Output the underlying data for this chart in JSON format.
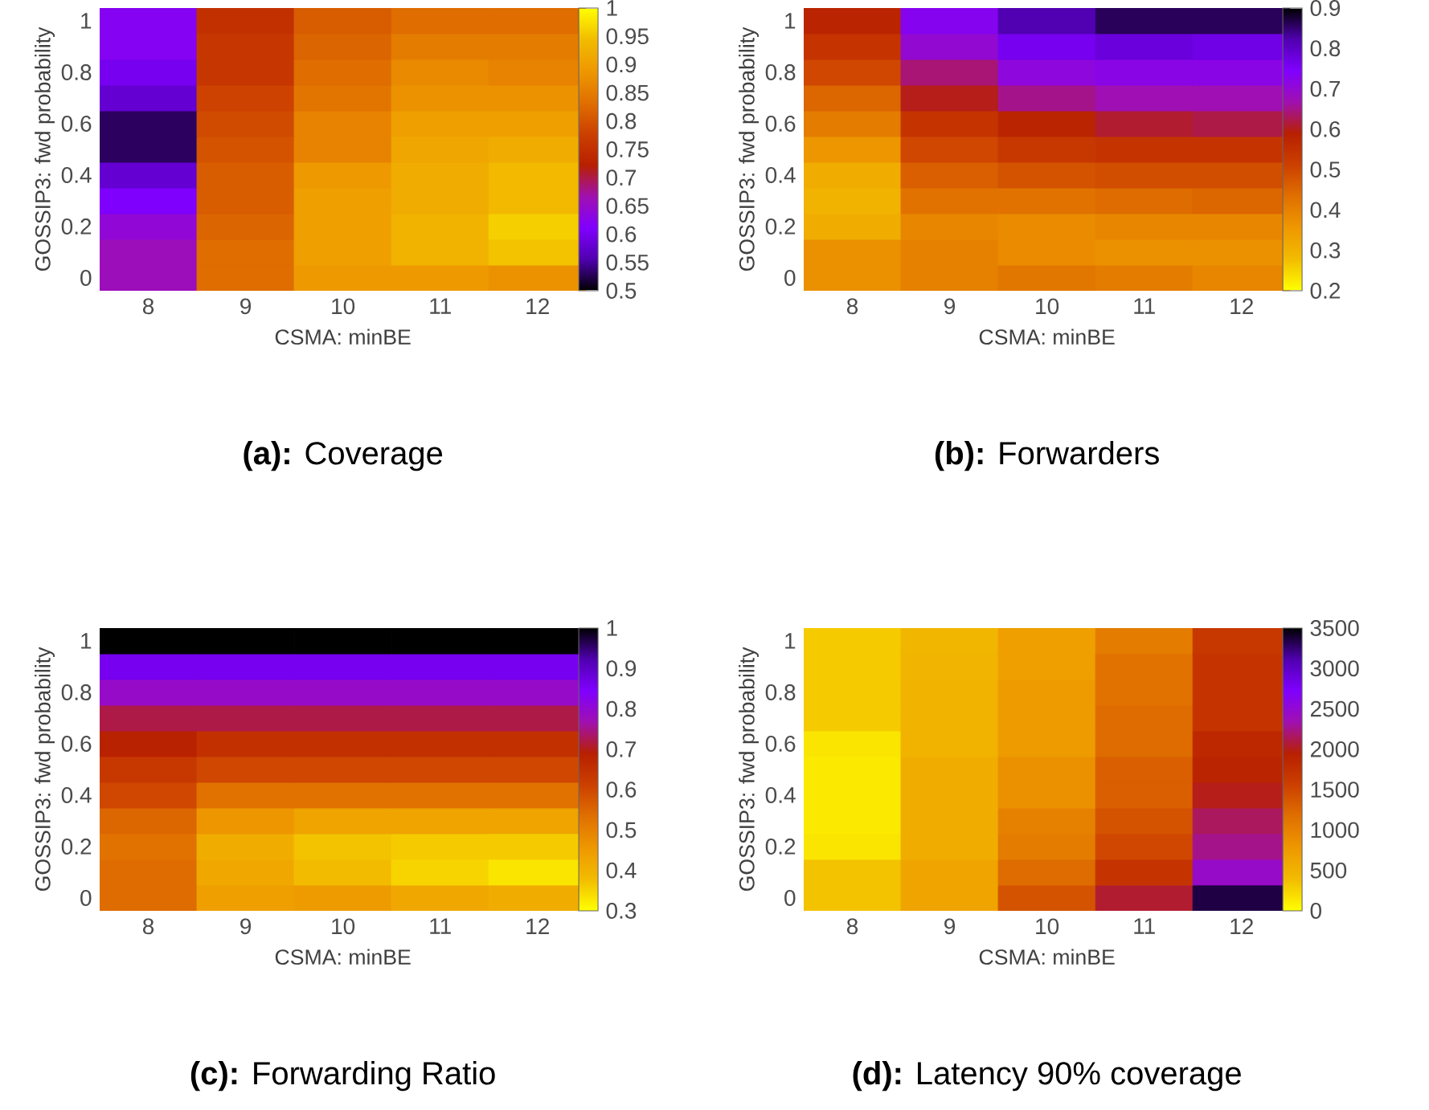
{
  "chart_data": [
    {
      "type": "heatmap",
      "title": "**(a):** Coverage",
      "xlabel": "CSMA: minBE",
      "ylabel": "GOSSIP3: fwd probability",
      "categories": [
        "8",
        "9",
        "10",
        "11",
        "12"
      ],
      "y_categories": [
        "1",
        null,
        "0.8",
        null,
        "0.6",
        null,
        "0.4",
        null,
        "0.2",
        null,
        "0"
      ],
      "cells": [
        [
          0.62,
          0.75,
          0.81,
          0.83,
          0.83
        ],
        [
          0.62,
          0.76,
          0.82,
          0.85,
          0.85
        ],
        [
          0.6,
          0.76,
          0.83,
          0.87,
          0.86
        ],
        [
          0.58,
          0.78,
          0.84,
          0.88,
          0.88
        ],
        [
          0.53,
          0.79,
          0.86,
          0.9,
          0.9
        ],
        [
          0.53,
          0.8,
          0.86,
          0.91,
          0.92
        ],
        [
          0.58,
          0.81,
          0.89,
          0.92,
          0.94
        ],
        [
          0.61,
          0.81,
          0.9,
          0.92,
          0.94
        ],
        [
          0.64,
          0.82,
          0.9,
          0.93,
          0.96
        ],
        [
          0.66,
          0.83,
          0.9,
          0.93,
          0.95
        ],
        [
          0.66,
          0.83,
          0.89,
          0.89,
          0.88
        ]
      ],
      "clim": [
        0.5,
        1
      ],
      "cticks": [
        0.5,
        0.55,
        0.6,
        0.65,
        0.7,
        0.75,
        0.8,
        0.85,
        0.9,
        0.95,
        1
      ],
      "colors": [
        "#000000",
        "#5000b0",
        "#8000ff",
        "#a010b0",
        "#b82000",
        "#cc4000",
        "#e07000",
        "#ee9800",
        "#f2bc00",
        "#ffff00"
      ]
    },
    {
      "type": "heatmap",
      "title": "**(b):** Forwarders",
      "xlabel": "CSMA: minBE",
      "ylabel": "GOSSIP3: fwd probability",
      "categories": [
        "8",
        "9",
        "10",
        "11",
        "12"
      ],
      "y_categories": [
        "1",
        null,
        "0.8",
        null,
        "0.6",
        null,
        "0.4",
        null,
        "0.2",
        null,
        "0"
      ],
      "cells": [
        [
          0.58,
          0.73,
          0.82,
          0.86,
          0.86
        ],
        [
          0.54,
          0.7,
          0.76,
          0.78,
          0.77
        ],
        [
          0.5,
          0.64,
          0.71,
          0.72,
          0.72
        ],
        [
          0.45,
          0.6,
          0.65,
          0.67,
          0.67
        ],
        [
          0.41,
          0.54,
          0.58,
          0.61,
          0.62
        ],
        [
          0.36,
          0.5,
          0.53,
          0.54,
          0.54
        ],
        [
          0.31,
          0.46,
          0.48,
          0.49,
          0.49
        ],
        [
          0.3,
          0.43,
          0.43,
          0.44,
          0.45
        ],
        [
          0.31,
          0.39,
          0.38,
          0.39,
          0.39
        ],
        [
          0.37,
          0.4,
          0.38,
          0.37,
          0.37
        ],
        [
          0.37,
          0.4,
          0.42,
          0.41,
          0.39
        ]
      ],
      "clim": [
        0.2,
        0.9
      ],
      "cticks": [
        0.2,
        0.3,
        0.4,
        0.5,
        0.6,
        0.7,
        0.8,
        0.9
      ],
      "colors": [
        "#ffff00",
        "#f2bc00",
        "#ee9800",
        "#e07000",
        "#cc4000",
        "#b82000",
        "#a010b0",
        "#8000ff",
        "#5000b0",
        "#000000"
      ]
    },
    {
      "type": "heatmap",
      "title": "**(c):** Forwarding Ratio",
      "xlabel": "CSMA: minBE",
      "ylabel": "GOSSIP3: fwd probability",
      "categories": [
        "8",
        "9",
        "10",
        "11",
        "12"
      ],
      "y_categories": [
        "1",
        null,
        "0.8",
        null,
        "0.6",
        null,
        "0.4",
        null,
        "0.2",
        null,
        "0"
      ],
      "cells": [
        [
          1,
          1,
          1,
          1,
          1
        ],
        [
          0.86,
          0.86,
          0.86,
          0.86,
          0.86
        ],
        [
          0.79,
          0.79,
          0.79,
          0.79,
          0.79
        ],
        [
          0.72,
          0.72,
          0.72,
          0.72,
          0.72
        ],
        [
          0.685,
          0.65,
          0.65,
          0.65,
          0.65
        ],
        [
          0.63,
          0.6,
          0.6,
          0.6,
          0.6
        ],
        [
          0.6,
          0.53,
          0.53,
          0.53,
          0.53
        ],
        [
          0.55,
          0.46,
          0.43,
          0.43,
          0.43
        ],
        [
          0.53,
          0.41,
          0.37,
          0.36,
          0.36
        ],
        [
          0.54,
          0.42,
          0.38,
          0.35,
          0.33
        ],
        [
          0.54,
          0.44,
          0.45,
          0.42,
          0.41
        ]
      ],
      "clim": [
        0.3,
        1
      ],
      "cticks": [
        0.3,
        0.4,
        0.5,
        0.6,
        0.7,
        0.8,
        0.9,
        1
      ],
      "colors": [
        "#ffff00",
        "#f2bc00",
        "#ee9800",
        "#e07000",
        "#cc4000",
        "#b82000",
        "#a010b0",
        "#8000ff",
        "#5000b0",
        "#000000"
      ]
    },
    {
      "type": "heatmap",
      "title": "**(d):** Latency 90% coverage",
      "xlabel": "CSMA: minBE",
      "ylabel": "GOSSIP3: fwd probability",
      "categories": [
        "8",
        "9",
        "10",
        "11",
        "12"
      ],
      "y_categories": [
        "1",
        null,
        "0.8",
        null,
        "0.6",
        null,
        "0.4",
        null,
        "0.2",
        null,
        "0"
      ],
      "cells": [
        [
          300,
          450,
          700,
          1050,
          1650
        ],
        [
          300,
          480,
          700,
          1150,
          1700
        ],
        [
          300,
          500,
          750,
          1150,
          1700
        ],
        [
          300,
          500,
          750,
          1200,
          1700
        ],
        [
          150,
          500,
          750,
          1200,
          1850
        ],
        [
          120,
          550,
          850,
          1300,
          1900
        ],
        [
          120,
          550,
          850,
          1300,
          2000
        ],
        [
          120,
          550,
          1000,
          1400,
          2150
        ],
        [
          150,
          550,
          1050,
          1500,
          2250
        ],
        [
          350,
          650,
          1200,
          1700,
          2450
        ],
        [
          350,
          650,
          1400,
          2050,
          3350
        ]
      ],
      "clim": [
        0,
        3500
      ],
      "cticks": [
        0,
        500,
        1000,
        1500,
        2000,
        2500,
        3000,
        3500
      ],
      "colors": [
        "#ffff00",
        "#f2bc00",
        "#ee9800",
        "#e07000",
        "#cc4000",
        "#b82000",
        "#a010b0",
        "#8000ff",
        "#5000b0",
        "#000000"
      ]
    }
  ]
}
